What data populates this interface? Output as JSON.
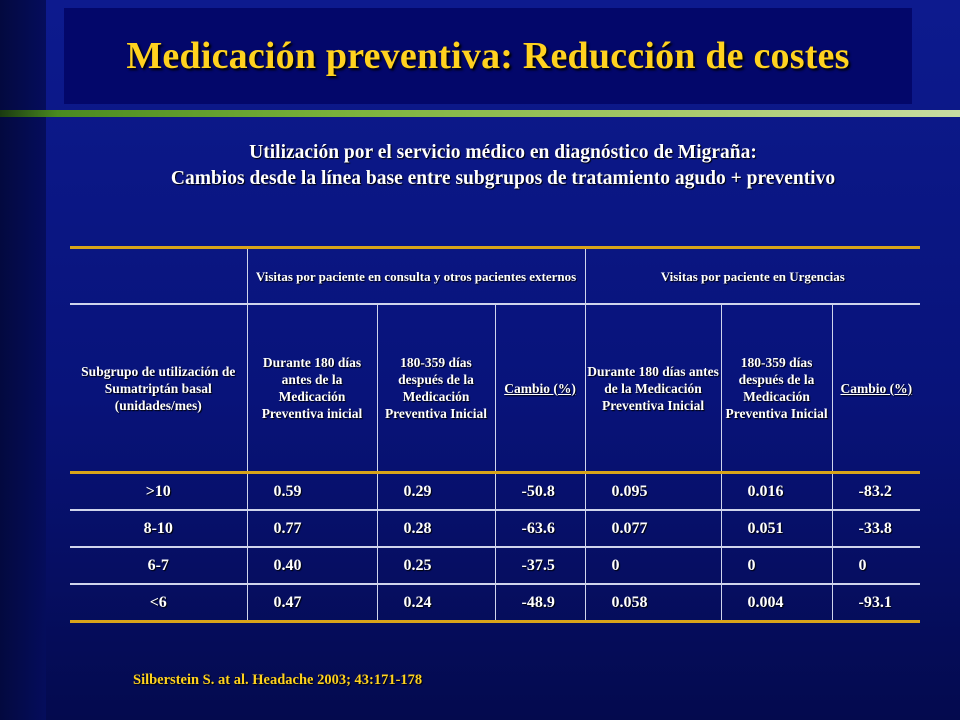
{
  "title": "Medicación preventiva: Reducción de costes",
  "subtitle": {
    "line1": "Utilización por el servicio médico en diagnóstico de Migraña:",
    "line2": "Cambios desde la línea base entre subgrupos de tratamiento agudo + preventivo"
  },
  "table": {
    "group_headers": {
      "outpatient": "Visitas por paciente en consulta y otros pacientes externos",
      "emergency": "Visitas por paciente en Urgencias"
    },
    "column_headers": {
      "subgroup": "Subgrupo de utilización de Sumatriptán basal (unidades/mes)",
      "out_before": "Durante 180 días antes de la Medicación Preventiva inicial",
      "out_after": "180-359 días después de la Medicación Preventiva Inicial",
      "out_change": "Cambio (%)",
      "er_before": "Durante 180 días antes de la Medicación Preventiva Inicial",
      "er_after": "180-359 días después de la Medicación Preventiva Inicial",
      "er_change": "Cambio (%)"
    },
    "rows": [
      [
        ">10",
        "0.59",
        "0.29",
        "-50.8",
        "0.095",
        "0.016",
        "-83.2"
      ],
      [
        "8-10",
        "0.77",
        "0.28",
        "-63.6",
        "0.077",
        "0.051",
        "-33.8"
      ],
      [
        "6-7",
        "0.40",
        "0.25",
        "-37.5",
        "0",
        "0",
        "0"
      ],
      [
        "<6",
        "0.47",
        "0.24",
        "-48.9",
        "0.058",
        "0.004",
        "-93.1"
      ]
    ]
  },
  "citation": "Silberstein S. at al. Headache 2003; 43:171-178",
  "colors": {
    "background": "#0d1a8e",
    "title_box": "#03076a",
    "title_text": "#ffd21f",
    "rule_gold": "#d9a41a",
    "text": "#ffffff"
  }
}
